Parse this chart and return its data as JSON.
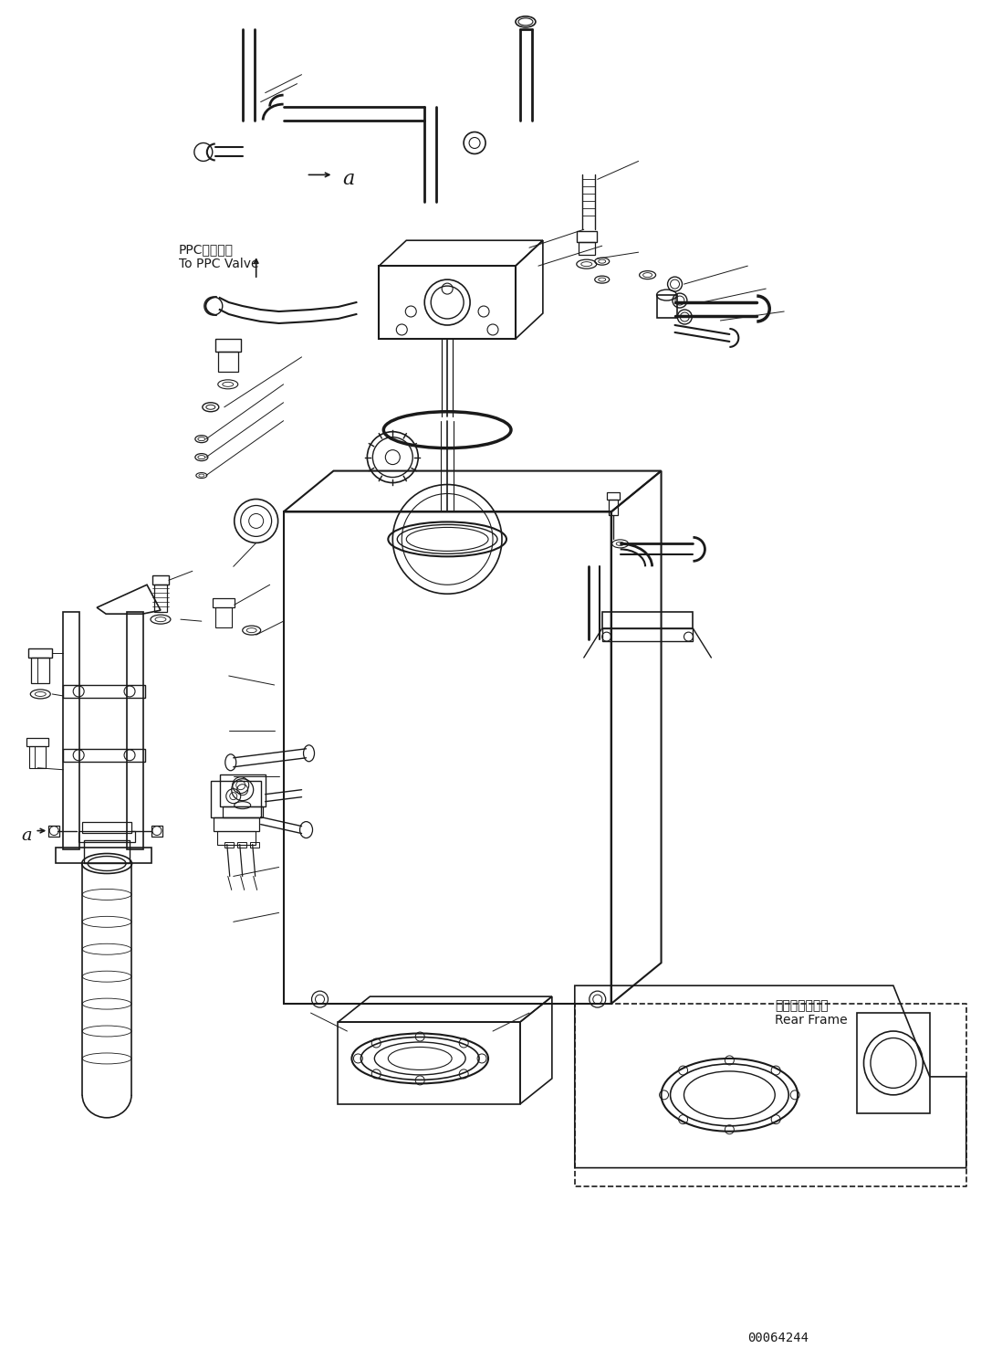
{
  "background_color": "#ffffff",
  "line_color": "#1a1a1a",
  "figure_width": 10.98,
  "figure_height": 14.88,
  "dpi": 100,
  "part_number": "00064244",
  "ppc_text_line1": "PPCバルブへ",
  "ppc_text_line2": "To PPC Valve",
  "rear_frame_line1": "リヤーフレーム",
  "rear_frame_line2": "Rear Frame",
  "label_a": "a"
}
